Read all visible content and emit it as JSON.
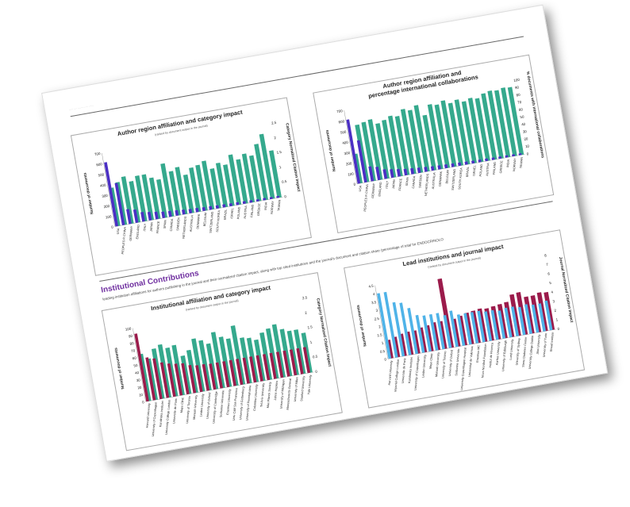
{
  "header": {
    "stub_text": "····· ···· ······· ·· ··· ······"
  },
  "section": {
    "title": "Institutional Contributions",
    "subtitle": "leading institution affiliations for authors publishing in the journal and their normalized citation impact, along with top cited institutions and the journal's document and citation share (percentage of total for ENDOCRINOLO"
  },
  "chart_data": [
    {
      "type": "bar",
      "title": "Author region affiliation and category impact",
      "subtitle": "(ranked by document output in the journal)",
      "ylabel": "Number of documents",
      "y2label": "Category Normalized Citation Impact",
      "ylim": [
        0,
        700
      ],
      "yticks": [
        "0",
        "100",
        "200",
        "300",
        "400",
        "500",
        "600",
        "700"
      ],
      "y2lim": [
        0,
        2.5
      ],
      "y2ticks": [
        "0",
        "0.5",
        "1",
        "1.5",
        "2",
        "2.5"
      ],
      "categories": [
        "USA",
        "PEOPLES R CHINA",
        "GERMANY",
        "ENGLAND",
        "ITALY",
        "JAPAN",
        "FRANCE",
        "SPAIN",
        "CANADA",
        "SWEDEN",
        "NETHERLANDS",
        "AUSTRALIA",
        "DENMARK",
        "BELGIUM",
        "SWITZERLAND",
        "SOUTH KOREA",
        "BRAZIL",
        "ISRAEL",
        "POLAND",
        "AUSTRIA",
        "FINLAND",
        "GREECE",
        "INDIA",
        "NORWAY",
        "TAIWAN"
      ],
      "series": [
        {
          "color": "#4b2fc4",
          "values": [
            610,
            400,
            140,
            125,
            90,
            80,
            70,
            60,
            55,
            50,
            45,
            40,
            38,
            35,
            33,
            30,
            28,
            26,
            25,
            24,
            22,
            20,
            20,
            18,
            17
          ]
        },
        {
          "color": "#35a98d",
          "values": [
            1.3,
            1.45,
            1.6,
            1.4,
            1.55,
            1.55,
            1.4,
            1.3,
            1.8,
            1.5,
            1.6,
            1.3,
            1.5,
            1.55,
            1.65,
            1.35,
            1.5,
            1.4,
            1.7,
            1.5,
            1.65,
            1.55,
            1.9,
            2.2,
            1.6
          ]
        }
      ]
    },
    {
      "type": "bar",
      "title": "Author region affiliation and percentage international collaborations",
      "ylabel": "Number of documents",
      "y2label": "% documents with international collaborations",
      "ylim": [
        0,
        700
      ],
      "yticks": [
        "0",
        "100",
        "200",
        "300",
        "400",
        "500",
        "600",
        "700"
      ],
      "y2lim": [
        0,
        100
      ],
      "y2ticks": [
        "0",
        "10",
        "20",
        "30",
        "40",
        "50",
        "60",
        "70",
        "80",
        "90",
        "100"
      ],
      "categories": [
        "USA",
        "PEOPLES R CHINA",
        "GERMANY",
        "ENGLAND",
        "ITALY",
        "JAPAN",
        "FRANCE",
        "SPAIN",
        "CANADA",
        "SWEDEN",
        "NETHERLANDS",
        "AUSTRALIA",
        "DENMARK",
        "BELGIUM",
        "SWITZERLAND",
        "SOUTH KOREA",
        "BRAZIL",
        "ISRAEL",
        "POLAND",
        "AUSTRIA",
        "FINLAND",
        "GREECE",
        "INDIA",
        "NORWAY",
        "TAIWAN"
      ],
      "series": [
        {
          "color": "#4b2fc4",
          "values": [
            610,
            400,
            140,
            125,
            90,
            80,
            70,
            60,
            55,
            50,
            45,
            40,
            38,
            35,
            33,
            30,
            28,
            26,
            25,
            24,
            22,
            20,
            20,
            18,
            17
          ]
        },
        {
          "color": "#35a98d",
          "values": [
            40,
            78,
            80,
            82,
            75,
            78,
            82,
            80,
            88,
            85,
            90,
            75,
            88,
            86,
            90,
            85,
            88,
            84,
            87,
            85,
            90,
            92,
            91,
            93,
            92
          ]
        }
      ]
    },
    {
      "type": "bar",
      "title": "Institutional affiliation and category impact",
      "subtitle": "(ranked by document output in the journal)",
      "ylabel": "Number of documents",
      "y2label": "Category Normalized Citation Impact",
      "ylim": [
        0,
        100
      ],
      "yticks": [
        "0",
        "10",
        "20",
        "30",
        "40",
        "50",
        "60",
        "70",
        "80",
        "90",
        "100"
      ],
      "y2lim": [
        0,
        2.5
      ],
      "y2ticks": [
        "0",
        "0.5",
        "1",
        "1.5",
        "2",
        "2.5"
      ],
      "categories": [
        "Harvard University",
        "University of Copenhagen",
        "Karolinska Institutet",
        "University College London",
        "Universite de Paris",
        "Mayo Clinic",
        "University of Toronto",
        "Monash University",
        "Leiden University",
        "University of Oxford",
        "University of Cambridge",
        "Sorbonne Universite",
        "Erasmus University",
        "Univ Calif San Francisco",
        "University of Gothenburg",
        "University of Pennsylvania",
        "Columbia University",
        "Tel Aviv University",
        "Max Planck Society",
        "Johns Hopkins",
        "University of Michigan",
        "Massachusetts General",
        "University of Milan",
        "Stanford University",
        "Yale University"
      ],
      "series": [
        {
          "color": "#9b1b4b",
          "values": [
            92,
            58,
            55,
            48,
            45,
            43,
            42,
            38,
            36,
            36,
            35,
            35,
            35,
            35,
            35,
            35,
            35,
            35,
            35,
            35,
            35,
            35,
            35,
            35,
            35
          ]
        },
        {
          "color": "#35a98d",
          "values": [
            1.6,
            1.4,
            1.7,
            1.8,
            1.65,
            1.7,
            1.3,
            1.45,
            1.8,
            1.7,
            1.55,
            1.9,
            1.7,
            1.6,
            2.0,
            1.55,
            1.5,
            1.4,
            1.6,
            1.7,
            1.8,
            1.6,
            1.5,
            1.5,
            1.35
          ]
        }
      ]
    },
    {
      "type": "bar",
      "title": "Lead institutions and journal impact",
      "subtitle": "(ranked by document output in the journal)",
      "ylabel": "Number of documents",
      "y2label": "Journal Normalized Citation Impact",
      "ylim": [
        0,
        4.5
      ],
      "yticks": [
        "0",
        "0.5",
        "1",
        "1.5",
        "2",
        "2.5",
        "3",
        "3.5",
        "4",
        "4.5"
      ],
      "y2lim": [
        0,
        8
      ],
      "y2ticks": [
        "0",
        "1",
        "2",
        "3",
        "4",
        "5",
        "6",
        "7",
        "8"
      ],
      "categories": [
        "Harvard University",
        "Imperial College London",
        "Universite de Paris",
        "Karolinska Institutet",
        "University of Copenhagen",
        "Leiden University",
        "Mayo Clinic",
        "Monash University",
        "University of Toronto",
        "University of Oxford",
        "Sorbonne Universite",
        "University Copenhagen Hospital",
        "Universitat de Valencia",
        "Erasmus MC",
        "Novo Nordisk Foundation",
        "Institut de Recerca",
        "Aarhus University",
        "University of Edinburgh",
        "Lund University",
        "University of Sydney",
        "Steno Diabetes Center",
        "University College Dublin",
        "Jikei University",
        "University of Turin",
        "Broad Institute"
      ],
      "series": [
        {
          "color": "#4fb3e8",
          "values": [
            4.0,
            4.0,
            3.3,
            3.2,
            2.8,
            2.3,
            2.2,
            2.2,
            2.2,
            2.0,
            2.2,
            1.9,
            1.9,
            1.9,
            1.9,
            1.8,
            1.8,
            1.7,
            1.8,
            1.8,
            1.7,
            1.8,
            1.7,
            1.7,
            1.8
          ]
        },
        {
          "color": "#9b1b4b",
          "values": [
            2.0,
            2.2,
            2.4,
            2.5,
            2.5,
            2.7,
            2.8,
            3.0,
            3.0,
            7.5,
            3.0,
            3.2,
            3.4,
            3.5,
            3.6,
            3.5,
            3.6,
            3.7,
            3.8,
            4.5,
            4.6,
            4.0,
            4.0,
            4.2,
            4.1
          ]
        }
      ]
    }
  ]
}
